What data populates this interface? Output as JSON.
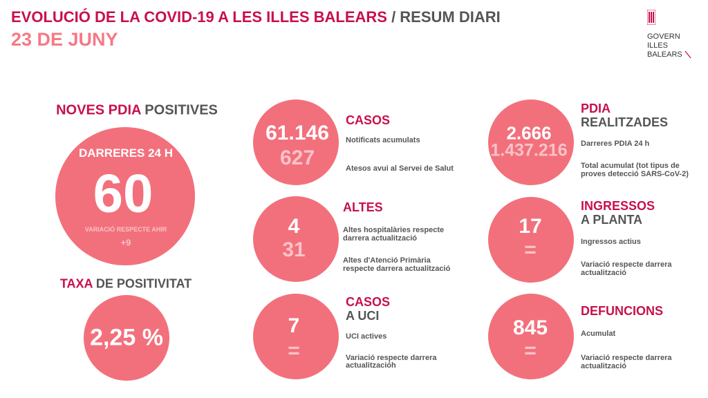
{
  "header": {
    "title_red": "EVOLUCIÓ DE LA COVID-19 A LES ILLES BALEARS",
    "title_sep": " / ",
    "title_grey": "RESUM DIARI",
    "date": "23 DE JUNY"
  },
  "logo": {
    "lines": [
      "GOVERN",
      "ILLES",
      "BALEARS"
    ]
  },
  "colors": {
    "circle": "#f2707c",
    "accent": "#c8104a",
    "text": "#555555",
    "date": "#f47a85"
  },
  "new_pdia": {
    "title_red": "NOVES PDIA",
    "title_grey": " POSITIVES",
    "period": "DARRERES 24 H",
    "value": "60",
    "variation_label": "VARIACIÓ RESPECTE AHIR",
    "variation": "+9"
  },
  "positivity": {
    "title_red": "TAXA",
    "title_grey": " DE POSITIVITAT",
    "value": "2,25 %"
  },
  "cases": {
    "title": "CASOS",
    "value1": "61.146",
    "value2": "627",
    "label1": "Notificats acumulats",
    "label2": "Atesos avui al Servei de Salut"
  },
  "discharges": {
    "title": "ALTES",
    "value1": "4",
    "value2": "31",
    "label1": [
      "Altes hospitalàries respecte",
      "darrera actualització"
    ],
    "label2": [
      "Altes d'Atenció Primària",
      "respecte darrera actualització"
    ]
  },
  "icu": {
    "title_red": "CASOS",
    "title_grey": "A UCI",
    "value1": "7",
    "value2": "=",
    "label1": "UCI actives",
    "label2": [
      "Variació respecte darrera",
      "actualitzacióh"
    ]
  },
  "pdia_done": {
    "title_red": "PDIA",
    "title_grey": "REALITZADES",
    "value1": "2.666",
    "value2": "1.437.216",
    "label1": "Darreres PDIA 24 h",
    "label2": [
      "Total acumulat (tot tipus de",
      "proves detecció SARS-CoV-2)"
    ]
  },
  "ward": {
    "title_red": "INGRESSOS",
    "title_grey": "A PLANTA",
    "value1": "17",
    "value2": "=",
    "label1": "Ingressos actius",
    "label2": [
      "Variació respecte darrera",
      "actualització"
    ]
  },
  "deaths": {
    "title": "DEFUNCIONS",
    "value1": "845",
    "value2": "=",
    "label1": "Acumulat",
    "label2": [
      "Variació respecte darrera",
      "actualització"
    ]
  }
}
